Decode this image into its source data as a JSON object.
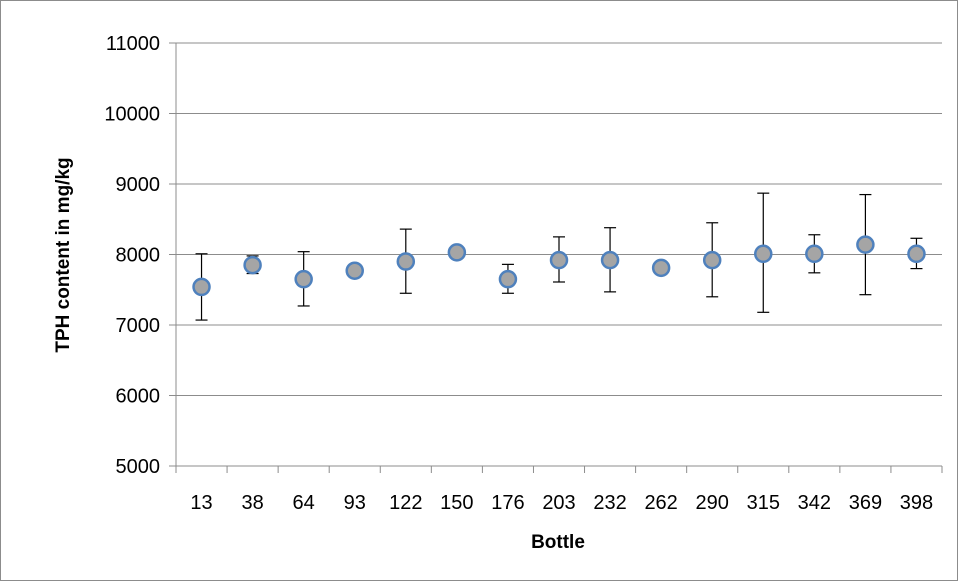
{
  "chart_data": {
    "type": "scatter",
    "title": "",
    "xlabel": "Bottle",
    "ylabel": "TPH content in mg/kg",
    "categories": [
      "13",
      "38",
      "64",
      "93",
      "122",
      "150",
      "176",
      "203",
      "232",
      "262",
      "290",
      "315",
      "342",
      "369",
      "398"
    ],
    "series": [
      {
        "values": [
          7540,
          7850,
          7650,
          7770,
          7900,
          8030,
          7650,
          7920,
          7920,
          7810,
          7920,
          8010,
          8010,
          8140,
          8010
        ],
        "error_low": [
          7070,
          7730,
          7270,
          7680,
          7450,
          8030,
          7450,
          7610,
          7470,
          7810,
          7400,
          7180,
          7740,
          7430,
          7800
        ],
        "error_high": [
          8010,
          7980,
          8040,
          7800,
          8360,
          8030,
          7860,
          8250,
          8380,
          7810,
          8450,
          8870,
          8280,
          8850,
          8230
        ]
      }
    ],
    "ylim": [
      5000,
      11000
    ],
    "yticks": [
      5000,
      6000,
      7000,
      8000,
      9000,
      10000,
      11000
    ],
    "grid": true,
    "legend": "none",
    "colors": {
      "marker_fill": "#a5a5a5",
      "marker_stroke": "#4f81bd",
      "error_bar": "#000000",
      "grid": "#8c8c8c",
      "axis": "#8c8c8c"
    }
  }
}
